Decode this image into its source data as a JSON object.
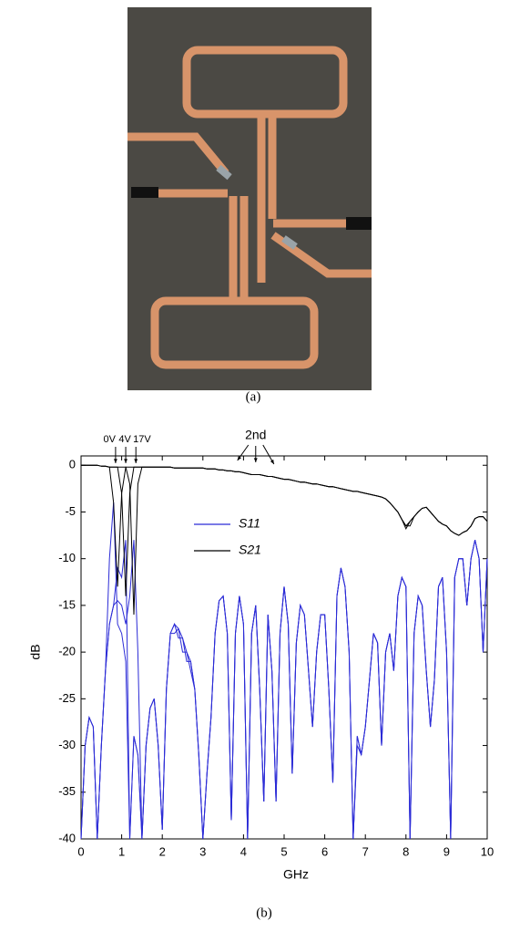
{
  "chart_data": {
    "type": "line",
    "captions": [
      "(a)",
      "(b)"
    ],
    "xlabel": "GHz",
    "ylabel": "dB",
    "annotations": [
      "0V",
      "4V",
      "17V",
      "2nd"
    ],
    "xlim": [
      0,
      10
    ],
    "xticks": [
      0,
      1,
      2,
      3,
      4,
      5,
      6,
      7,
      8,
      9,
      10
    ],
    "ylim": [
      -40,
      1
    ],
    "yticks": [
      0,
      -5,
      -10,
      -15,
      -20,
      -25,
      -30,
      -35,
      -40
    ],
    "grid": false,
    "x": [
      0,
      0.1,
      0.2,
      0.3,
      0.4,
      0.5,
      0.6,
      0.7,
      0.8,
      0.9,
      1,
      1.1,
      1.2,
      1.3,
      1.4,
      1.5,
      1.6,
      1.7,
      1.8,
      1.9,
      2,
      2.1,
      2.2,
      2.3,
      2.4,
      2.5,
      2.6,
      2.7,
      2.8,
      2.9,
      3,
      3.1,
      3.2,
      3.3,
      3.4,
      3.5,
      3.6,
      3.7,
      3.8,
      3.9,
      4,
      4.1,
      4.2,
      4.3,
      4.4,
      4.5,
      4.6,
      4.7,
      4.8,
      4.9,
      5,
      5.1,
      5.2,
      5.3,
      5.4,
      5.5,
      5.6,
      5.7,
      5.8,
      5.9,
      6,
      6.1,
      6.2,
      6.3,
      6.4,
      6.5,
      6.6,
      6.7,
      6.8,
      6.9,
      7,
      7.1,
      7.2,
      7.3,
      7.4,
      7.5,
      7.6,
      7.7,
      7.8,
      7.9,
      8,
      8.1,
      8.2,
      8.3,
      8.4,
      8.5,
      8.6,
      8.7,
      8.8,
      8.9,
      9,
      9.1,
      9.2,
      9.3,
      9.4,
      9.5,
      9.6,
      9.7,
      9.8,
      9.9,
      10
    ],
    "series": [
      {
        "name": "S11",
        "color": "#2b2bd6",
        "values": [
          [
            -40,
            -30,
            -27,
            -28,
            -40,
            -30,
            -22,
            -10,
            -4,
            -17,
            -18,
            -21,
            -40,
            -29,
            -31,
            -40,
            -30,
            -26,
            -25,
            -30,
            -39,
            -24,
            -18,
            -18,
            -17.5,
            -20,
            -20,
            -22,
            -24,
            -31,
            -40,
            -33,
            -27,
            -18,
            -14.5,
            -14,
            -18,
            -38,
            -18,
            -14,
            -17,
            -40,
            -18,
            -15,
            -24,
            -36,
            -16,
            -22,
            -36,
            -18,
            -13,
            -17,
            -33,
            -19,
            -15,
            -16,
            -22,
            -28,
            -20,
            -16,
            -16,
            -24,
            -34,
            -14,
            -11,
            -13,
            -20,
            -40,
            -30,
            -31,
            -28,
            -23,
            -18,
            -19,
            -30,
            -20,
            -18,
            -22,
            -14,
            -12,
            -13,
            -40,
            -18,
            -14,
            -15,
            -22,
            -28,
            -23,
            -13,
            -12,
            -20,
            -40,
            -12,
            -10,
            -10,
            -15,
            -10,
            -8,
            -10,
            -20,
            -10
          ],
          [
            -40,
            -30,
            -27,
            -28,
            -40,
            -30,
            -22,
            -17,
            -15,
            -11,
            -12,
            -8,
            -40,
            -29,
            -31,
            -40,
            -30,
            -26,
            -25,
            -30,
            -39,
            -24,
            -18,
            -17,
            -18.5,
            -18.5,
            -21,
            -21,
            -24,
            -31,
            -40,
            -33,
            -27,
            -18,
            -14.5,
            -14,
            -18,
            -38,
            -18,
            -14,
            -17,
            -40,
            -18,
            -15,
            -24,
            -36,
            -16,
            -22,
            -36,
            -18,
            -13,
            -17,
            -33,
            -19,
            -15,
            -16,
            -22,
            -28,
            -20,
            -16,
            -16,
            -24,
            -34,
            -14,
            -11,
            -13,
            -20,
            -40,
            -29,
            -31,
            -28,
            -23,
            -18,
            -19,
            -30,
            -20,
            -18,
            -22,
            -14,
            -12,
            -13,
            -40,
            -18,
            -14,
            -15,
            -22,
            -28,
            -23,
            -13,
            -12,
            -20,
            -40,
            -12,
            -10,
            -10,
            -15,
            -10,
            -8,
            -10,
            -20,
            -10
          ],
          [
            -40,
            -30,
            -27,
            -28,
            -40,
            -30,
            -22,
            -17,
            -15,
            -14.5,
            -15,
            -17,
            -14,
            -8,
            -20,
            -40,
            -30,
            -26,
            -25,
            -30,
            -39,
            -24,
            -18,
            -17,
            -17.5,
            -18.5,
            -20,
            -21,
            -24,
            -31,
            -40,
            -33,
            -27,
            -18,
            -14.5,
            -14,
            -18,
            -38,
            -18,
            -14,
            -17,
            -40,
            -18,
            -15,
            -24,
            -36,
            -16,
            -22,
            -36,
            -18,
            -13,
            -17,
            -33,
            -19,
            -15,
            -16,
            -22,
            -28,
            -20,
            -16,
            -16,
            -24,
            -34,
            -14,
            -11,
            -13,
            -20,
            -40,
            -29,
            -31,
            -28,
            -23,
            -18,
            -19,
            -30,
            -20,
            -18,
            -22,
            -14,
            -12,
            -13,
            -40,
            -18,
            -14,
            -15,
            -22,
            -28,
            -23,
            -13,
            -12,
            -20,
            -40,
            -12,
            -10,
            -10,
            -15,
            -10,
            -8,
            -10,
            -20,
            -10
          ]
        ]
      },
      {
        "name": "S21",
        "color": "#000000",
        "values": [
          [
            0,
            0,
            0,
            0,
            0,
            -0.1,
            -0.1,
            -0.2,
            -4,
            -13,
            -3,
            -0.2,
            -0.2,
            -0.2,
            -0.2,
            -0.2,
            -0.2,
            -0.2,
            -0.2,
            -0.2,
            -0.2,
            -0.2,
            -0.2,
            -0.3,
            -0.3,
            -0.3,
            -0.3,
            -0.3,
            -0.3,
            -0.3,
            -0.3,
            -0.4,
            -0.4,
            -0.4,
            -0.5,
            -0.5,
            -0.6,
            -0.6,
            -0.7,
            -0.7,
            -0.8,
            -0.9,
            -1,
            -1,
            -1,
            -1.1,
            -1.2,
            -1.2,
            -1.3,
            -1.4,
            -1.5,
            -1.5,
            -1.6,
            -1.7,
            -1.8,
            -1.8,
            -1.9,
            -2,
            -2,
            -2.1,
            -2.2,
            -2.3,
            -2.3,
            -2.4,
            -2.5,
            -2.6,
            -2.7,
            -2.8,
            -2.8,
            -2.9,
            -3,
            -3.1,
            -3.2,
            -3.3,
            -3.4,
            -3.6,
            -4,
            -4.5,
            -5,
            -5.8,
            -6.8,
            -6,
            -5.5,
            -5,
            -4.6,
            -4.5,
            -5,
            -5.5,
            -6,
            -6.3,
            -6.5,
            -7,
            -7.3,
            -7.5,
            -7.2,
            -7,
            -6.5,
            -5.7,
            -5.5,
            -5.5,
            -6
          ],
          [
            0,
            0,
            0,
            0,
            0,
            -0.1,
            -0.1,
            -0.2,
            -0.2,
            -0.2,
            -3,
            -14,
            -3,
            -0.2,
            -0.2,
            -0.2,
            -0.2,
            -0.2,
            -0.2,
            -0.2,
            -0.2,
            -0.2,
            -0.2,
            -0.3,
            -0.3,
            -0.3,
            -0.3,
            -0.3,
            -0.3,
            -0.3,
            -0.3,
            -0.4,
            -0.4,
            -0.4,
            -0.5,
            -0.5,
            -0.6,
            -0.6,
            -0.7,
            -0.7,
            -0.8,
            -0.9,
            -1,
            -1,
            -1,
            -1.1,
            -1.2,
            -1.2,
            -1.3,
            -1.4,
            -1.5,
            -1.5,
            -1.6,
            -1.7,
            -1.8,
            -1.8,
            -1.9,
            -2,
            -2,
            -2.1,
            -2.2,
            -2.3,
            -2.3,
            -2.4,
            -2.5,
            -2.6,
            -2.7,
            -2.8,
            -2.8,
            -2.9,
            -3,
            -3.1,
            -3.2,
            -3.3,
            -3.4,
            -3.6,
            -4,
            -4.5,
            -5,
            -5.8,
            -6.5,
            -6.5,
            -5.5,
            -5,
            -4.6,
            -4.5,
            -5,
            -5.5,
            -6,
            -6.3,
            -6.5,
            -7,
            -7.3,
            -7.5,
            -7.2,
            -7,
            -6.5,
            -5.7,
            -5.5,
            -5.5,
            -6
          ],
          [
            0,
            0,
            0,
            0,
            0,
            -0.1,
            -0.1,
            -0.2,
            -0.2,
            -0.2,
            -0.2,
            -0.2,
            -2,
            -16,
            -2,
            -0.2,
            -0.2,
            -0.2,
            -0.2,
            -0.2,
            -0.2,
            -0.2,
            -0.2,
            -0.3,
            -0.3,
            -0.3,
            -0.3,
            -0.3,
            -0.3,
            -0.3,
            -0.3,
            -0.4,
            -0.4,
            -0.4,
            -0.5,
            -0.5,
            -0.6,
            -0.6,
            -0.7,
            -0.7,
            -0.8,
            -0.9,
            -1,
            -1,
            -1,
            -1.1,
            -1.2,
            -1.2,
            -1.3,
            -1.4,
            -1.5,
            -1.5,
            -1.6,
            -1.7,
            -1.8,
            -1.8,
            -1.9,
            -2,
            -2,
            -2.1,
            -2.2,
            -2.3,
            -2.3,
            -2.4,
            -2.5,
            -2.6,
            -2.7,
            -2.8,
            -2.8,
            -2.9,
            -3,
            -3.1,
            -3.2,
            -3.3,
            -3.4,
            -3.6,
            -4,
            -4.5,
            -5,
            -5.8,
            -6.5,
            -6,
            -5.5,
            -5,
            -4.6,
            -4.5,
            -5,
            -5.5,
            -6,
            -6.3,
            -6.5,
            -7,
            -7.3,
            -7.5,
            -7.2,
            -7,
            -6.5,
            -5.7,
            -5.5,
            -5.5,
            -6
          ]
        ]
      }
    ]
  }
}
